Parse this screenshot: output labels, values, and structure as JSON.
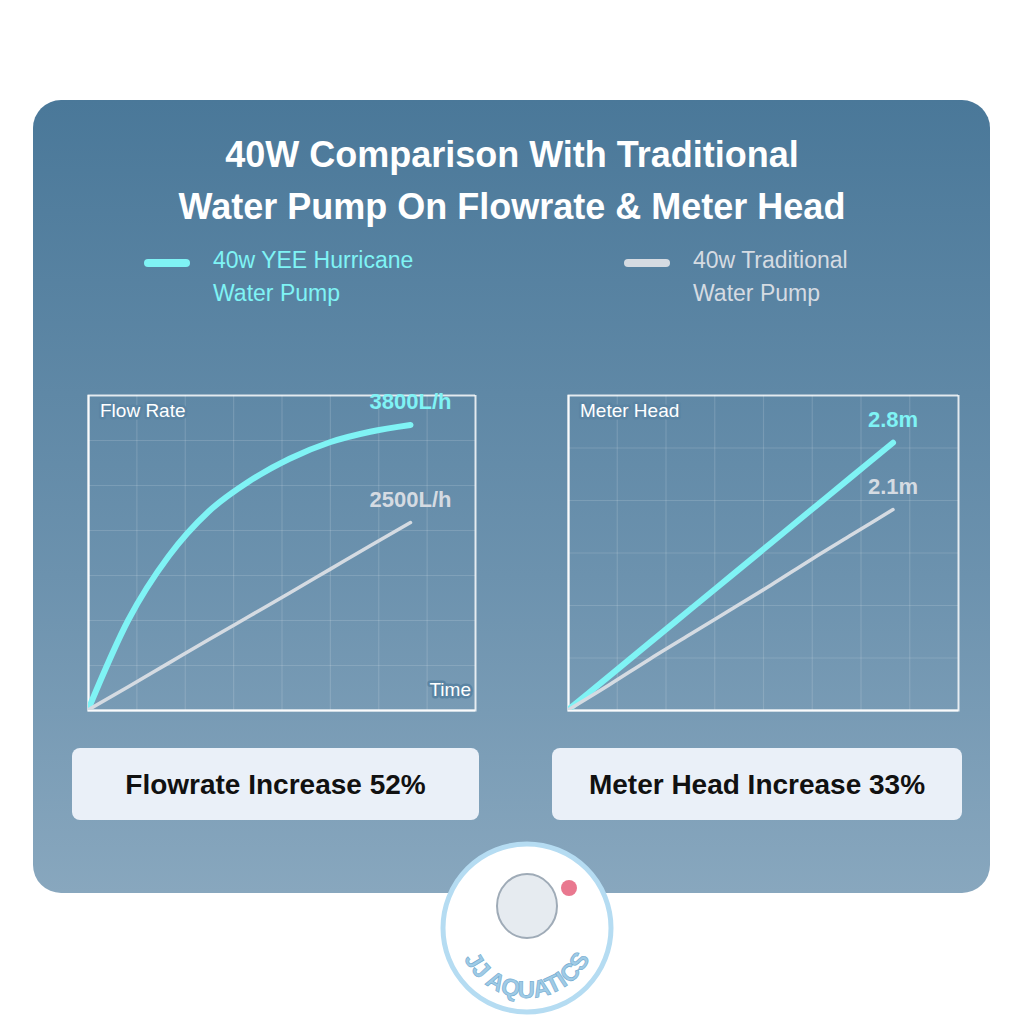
{
  "title": "40W Comparison With Traditional Water Pump On Flowrate & Meter Head",
  "watermark": "JJ AQUATICS",
  "chart_data": [
    {
      "type": "line",
      "x_label": "Time",
      "y_label": "Flow Rate",
      "annotations": [
        "Flowrate Increase 52%"
      ],
      "x": [
        0,
        1,
        2,
        3,
        4,
        5,
        6,
        7,
        8
      ],
      "xlim": [
        0,
        9.6
      ],
      "xticks": [
        0,
        1.2,
        2.4,
        3.6,
        4.8,
        6,
        7.2,
        8.4,
        9.6
      ],
      "ylim": [
        0,
        4200
      ],
      "yticks": [
        0,
        600,
        1200,
        1800,
        2400,
        3000,
        3600,
        4200
      ],
      "grid": true,
      "tick_labels": false,
      "legend": "top",
      "data_labels": true,
      "series": [
        {
          "name": "40w YEE Hurricane Water Pump",
          "color": "#7ff3f5",
          "values": [
            0,
            1200,
            2050,
            2650,
            3050,
            3350,
            3570,
            3710,
            3800
          ],
          "value_labels": [
            null,
            null,
            null,
            null,
            null,
            null,
            null,
            null,
            "3800L/h"
          ]
        },
        {
          "name": "40w Traditional Water Pump",
          "color": "#d5dbe2",
          "values": [
            0,
            310,
            625,
            940,
            1250,
            1560,
            1875,
            2190,
            2500
          ],
          "value_labels": [
            null,
            null,
            null,
            null,
            null,
            null,
            null,
            null,
            "2500L/h"
          ]
        }
      ]
    },
    {
      "type": "line",
      "y_label": "Meter Head",
      "annotations": [
        "Meter Head Increase 33%"
      ],
      "x": [
        0,
        1,
        2,
        3,
        4,
        5,
        6,
        7,
        8
      ],
      "xlim": [
        0,
        9.6
      ],
      "xticks": [
        0,
        1.2,
        2.4,
        3.6,
        4.8,
        6,
        7.2,
        8.4,
        9.6
      ],
      "ylim": [
        0,
        3.3
      ],
      "yticks": [
        0,
        0.55,
        1.1,
        1.65,
        2.2,
        2.75,
        3.3
      ],
      "grid": true,
      "tick_labels": false,
      "data_labels": true,
      "series": [
        {
          "color": "#7ff3f5",
          "values": [
            0,
            0.35,
            0.7,
            1.05,
            1.4,
            1.75,
            2.1,
            2.45,
            2.8
          ],
          "value_labels": [
            null,
            null,
            null,
            null,
            null,
            null,
            null,
            null,
            "2.8m"
          ]
        },
        {
          "color": "#d5dbe2",
          "values": [
            0,
            0.26,
            0.53,
            0.79,
            1.05,
            1.31,
            1.58,
            1.84,
            2.1
          ],
          "value_labels": [
            null,
            null,
            null,
            null,
            null,
            null,
            null,
            null,
            "2.1m"
          ]
        }
      ]
    }
  ]
}
